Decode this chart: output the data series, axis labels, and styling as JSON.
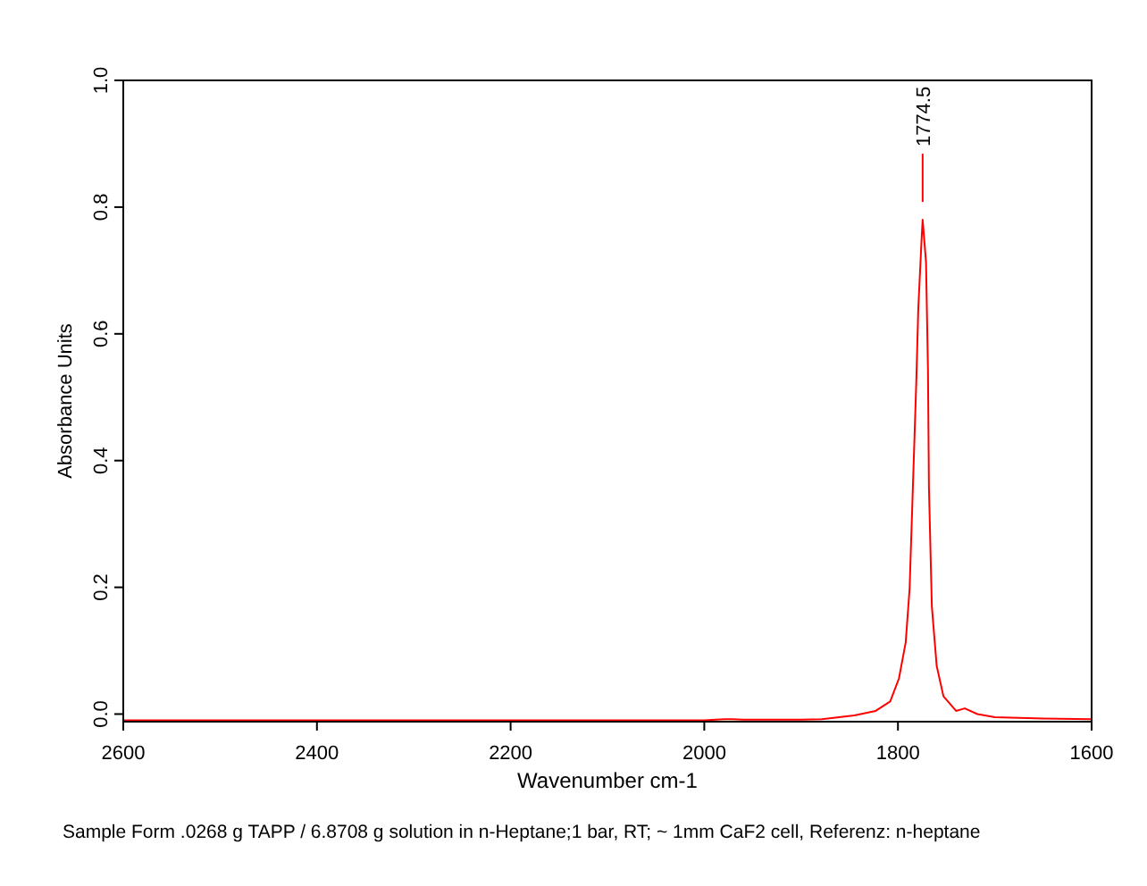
{
  "chart_data": {
    "type": "line",
    "xlabel": "Wavenumber cm-1",
    "ylabel": "Absorbance Units",
    "xlim": [
      2600,
      1600
    ],
    "xticks": [
      2600,
      2400,
      2200,
      2000,
      1800,
      1600
    ],
    "ylim": [
      -0.012,
      1
    ],
    "yticks": [
      {
        "value": 0,
        "label": "0.0"
      },
      0.2,
      0.4,
      0.6,
      0.8,
      {
        "value": 1,
        "label": "1.0"
      }
    ],
    "grid": false,
    "marker": "none",
    "line_style": "solid",
    "series": [
      {
        "color": "#ff0000",
        "x": [
          2600,
          2550,
          2500,
          2450,
          2400,
          2300,
          2250,
          2200,
          2100,
          2000,
          1980,
          1970,
          1960,
          1900,
          1878.6,
          1845,
          1823,
          1808,
          1799,
          1792,
          1788,
          1785,
          1781,
          1779,
          1775.5,
          1774.5,
          1771,
          1769,
          1768,
          1765,
          1760,
          1753,
          1740,
          1731,
          1718,
          1700,
          1650,
          1600
        ],
        "values": [
          -0.01,
          -0.01,
          -0.01,
          -0.01,
          -0.01,
          -0.01,
          -0.01,
          -0.01,
          -0.01,
          -0.01,
          -0.008,
          -0.008,
          -0.009,
          -0.009,
          -0.008,
          -0.002,
          0.005,
          0.02,
          0.056,
          0.113,
          0.197,
          0.338,
          0.527,
          0.64,
          0.752,
          0.78,
          0.713,
          0.544,
          0.358,
          0.17,
          0.076,
          0.028,
          0.005,
          0.009,
          0,
          -0.005,
          -0.007,
          -0.008
        ]
      }
    ],
    "annotations": [
      "1774.5",
      "Sample Form .0268 g TAPP / 6.8708 g solution in n-Heptane;1 bar, RT; ~ 1mm CaF2 cell, Referenz: n-heptane"
    ]
  }
}
